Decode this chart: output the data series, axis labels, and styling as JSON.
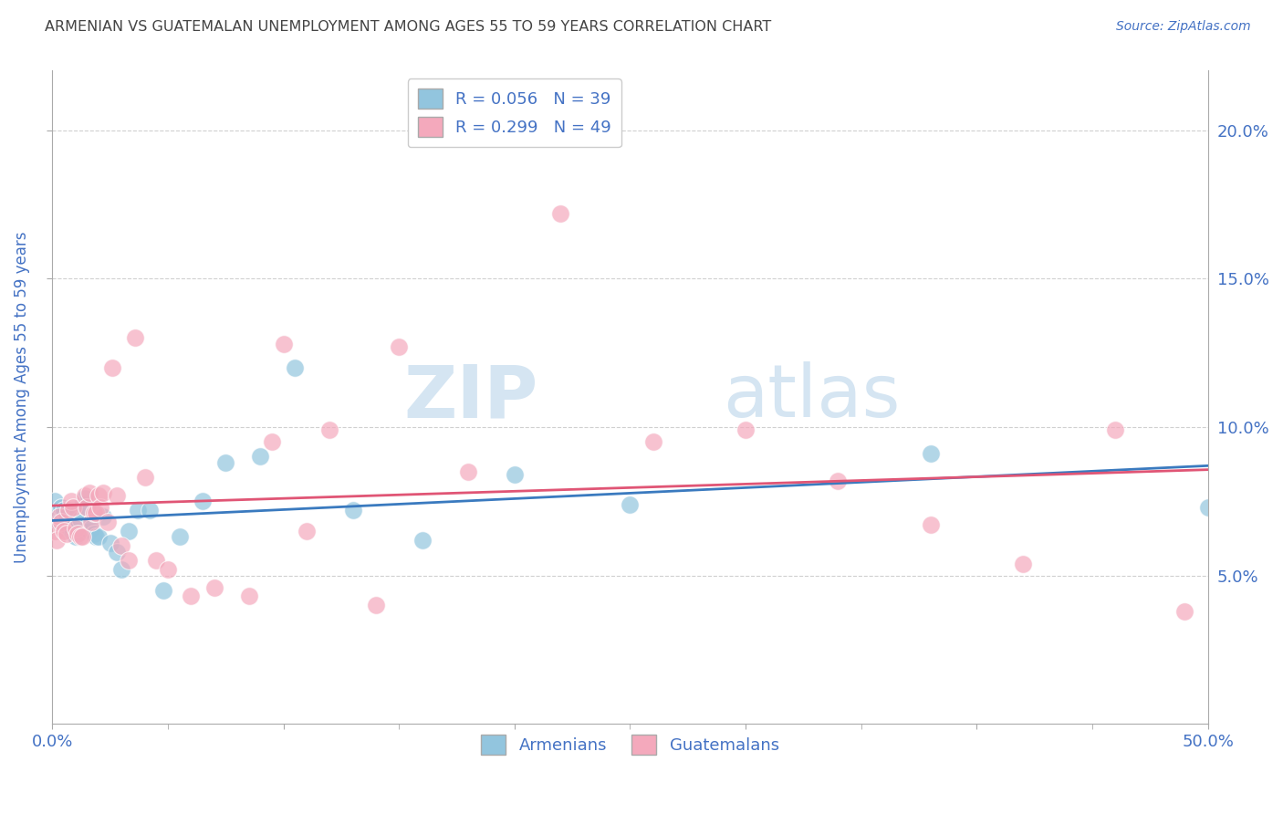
{
  "title": "ARMENIAN VS GUATEMALAN UNEMPLOYMENT AMONG AGES 55 TO 59 YEARS CORRELATION CHART",
  "source": "Source: ZipAtlas.com",
  "ylabel": "Unemployment Among Ages 55 to 59 years",
  "xlim": [
    0,
    0.5
  ],
  "ylim": [
    0,
    0.22
  ],
  "armenian_R": 0.056,
  "armenian_N": 39,
  "guatemalan_R": 0.299,
  "guatemalan_N": 49,
  "armenian_color": "#92c5de",
  "guatemalan_color": "#f4a9bc",
  "armenian_line_color": "#3a7abf",
  "guatemalan_line_color": "#e05575",
  "watermark_zip": "ZIP",
  "watermark_atlas": "atlas",
  "watermark_color": "#d5e5f2",
  "title_color": "#444444",
  "axis_color": "#4472c4",
  "grid_color": "#d0d0d0",
  "armenian_x": [
    0.001,
    0.002,
    0.003,
    0.004,
    0.005,
    0.006,
    0.007,
    0.008,
    0.009,
    0.01,
    0.011,
    0.012,
    0.013,
    0.014,
    0.015,
    0.016,
    0.017,
    0.018,
    0.019,
    0.02,
    0.022,
    0.025,
    0.028,
    0.03,
    0.033,
    0.037,
    0.042,
    0.048,
    0.055,
    0.065,
    0.075,
    0.09,
    0.105,
    0.13,
    0.16,
    0.2,
    0.25,
    0.38,
    0.5
  ],
  "armenian_y": [
    0.075,
    0.071,
    0.068,
    0.073,
    0.072,
    0.07,
    0.067,
    0.065,
    0.068,
    0.063,
    0.071,
    0.069,
    0.074,
    0.076,
    0.073,
    0.065,
    0.066,
    0.064,
    0.063,
    0.063,
    0.07,
    0.061,
    0.058,
    0.052,
    0.065,
    0.072,
    0.072,
    0.045,
    0.063,
    0.075,
    0.088,
    0.09,
    0.12,
    0.072,
    0.062,
    0.084,
    0.074,
    0.091,
    0.073
  ],
  "guatemalan_x": [
    0.001,
    0.002,
    0.003,
    0.004,
    0.005,
    0.006,
    0.007,
    0.008,
    0.009,
    0.01,
    0.011,
    0.012,
    0.013,
    0.014,
    0.015,
    0.016,
    0.017,
    0.018,
    0.019,
    0.02,
    0.021,
    0.022,
    0.024,
    0.026,
    0.028,
    0.03,
    0.033,
    0.036,
    0.04,
    0.045,
    0.05,
    0.06,
    0.07,
    0.085,
    0.1,
    0.12,
    0.15,
    0.18,
    0.22,
    0.26,
    0.3,
    0.34,
    0.38,
    0.42,
    0.46,
    0.49,
    0.095,
    0.11,
    0.14
  ],
  "guatemalan_y": [
    0.065,
    0.062,
    0.07,
    0.068,
    0.065,
    0.064,
    0.072,
    0.075,
    0.073,
    0.066,
    0.064,
    0.063,
    0.063,
    0.077,
    0.073,
    0.078,
    0.068,
    0.071,
    0.071,
    0.077,
    0.073,
    0.078,
    0.068,
    0.12,
    0.077,
    0.06,
    0.055,
    0.13,
    0.083,
    0.055,
    0.052,
    0.043,
    0.046,
    0.043,
    0.128,
    0.099,
    0.127,
    0.085,
    0.172,
    0.095,
    0.099,
    0.082,
    0.067,
    0.054,
    0.099,
    0.038,
    0.095,
    0.065,
    0.04
  ]
}
